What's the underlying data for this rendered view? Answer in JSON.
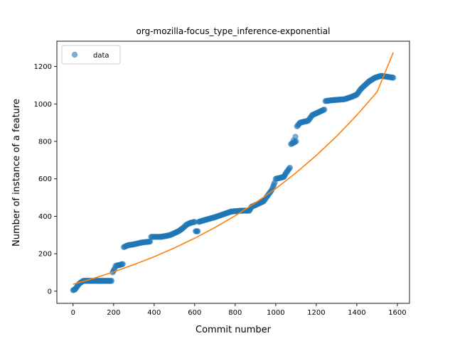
{
  "chart_data": {
    "type": "scatter",
    "title": "org-mozilla-focus_type_inference-exponential",
    "xlabel": "Commit number",
    "ylabel": "Number of instance of a feature",
    "xlim": [
      -80,
      1660
    ],
    "ylim": [
      -65,
      1335
    ],
    "xticks": [
      0,
      200,
      400,
      600,
      800,
      1000,
      1200,
      1400,
      1600
    ],
    "yticks": [
      0,
      200,
      400,
      600,
      800,
      1000,
      1200
    ],
    "legend": {
      "placement": "upper-left",
      "entries": [
        "data"
      ]
    },
    "grid": false,
    "colors": {
      "data": "#1f77b4",
      "fit": "#ff7f0e"
    },
    "data_knots": [
      [
        0,
        5
      ],
      [
        10,
        10
      ],
      [
        20,
        25
      ],
      [
        30,
        40
      ],
      [
        50,
        55
      ],
      [
        80,
        55
      ],
      [
        130,
        55
      ],
      [
        170,
        55
      ],
      [
        190,
        55
      ],
      [
        195,
        100
      ],
      [
        205,
        120
      ],
      [
        210,
        135
      ],
      [
        230,
        140
      ],
      [
        245,
        145
      ],
      [
        250,
        235
      ],
      [
        270,
        245
      ],
      [
        300,
        250
      ],
      [
        320,
        255
      ],
      [
        340,
        260
      ],
      [
        380,
        265
      ],
      [
        385,
        290
      ],
      [
        430,
        290
      ],
      [
        460,
        295
      ],
      [
        480,
        300
      ],
      [
        500,
        310
      ],
      [
        520,
        320
      ],
      [
        540,
        335
      ],
      [
        560,
        355
      ],
      [
        580,
        365
      ],
      [
        600,
        370
      ],
      [
        605,
        320
      ],
      [
        615,
        320
      ],
      [
        620,
        370
      ],
      [
        650,
        380
      ],
      [
        700,
        395
      ],
      [
        740,
        410
      ],
      [
        780,
        425
      ],
      [
        830,
        430
      ],
      [
        870,
        430
      ],
      [
        880,
        450
      ],
      [
        900,
        460
      ],
      [
        940,
        480
      ],
      [
        960,
        510
      ],
      [
        980,
        540
      ],
      [
        995,
        580
      ],
      [
        1000,
        600
      ],
      [
        1040,
        610
      ],
      [
        1050,
        630
      ],
      [
        1070,
        660
      ],
      [
        1075,
        785
      ],
      [
        1100,
        800
      ],
      [
        1105,
        880
      ],
      [
        1120,
        900
      ],
      [
        1160,
        910
      ],
      [
        1180,
        940
      ],
      [
        1200,
        950
      ],
      [
        1220,
        960
      ],
      [
        1240,
        970
      ],
      [
        1245,
        1015
      ],
      [
        1280,
        1020
      ],
      [
        1340,
        1025
      ],
      [
        1380,
        1040
      ],
      [
        1400,
        1050
      ],
      [
        1420,
        1080
      ],
      [
        1440,
        1100
      ],
      [
        1460,
        1120
      ],
      [
        1490,
        1140
      ],
      [
        1520,
        1150
      ],
      [
        1580,
        1140
      ]
    ],
    "outliers": [
      [
        1097,
        825
      ],
      [
        1087,
        805
      ]
    ],
    "fit": {
      "model": "exponential",
      "points": [
        [
          0,
          37
        ],
        [
          100,
          68
        ],
        [
          200,
          103
        ],
        [
          300,
          142
        ],
        [
          400,
          184
        ],
        [
          500,
          231
        ],
        [
          600,
          283
        ],
        [
          700,
          340
        ],
        [
          800,
          403
        ],
        [
          900,
          472
        ],
        [
          1000,
          548
        ],
        [
          1100,
          632
        ],
        [
          1200,
          725
        ],
        [
          1300,
          827
        ],
        [
          1400,
          940
        ],
        [
          1500,
          1064
        ],
        [
          1580,
          1275
        ]
      ]
    }
  }
}
